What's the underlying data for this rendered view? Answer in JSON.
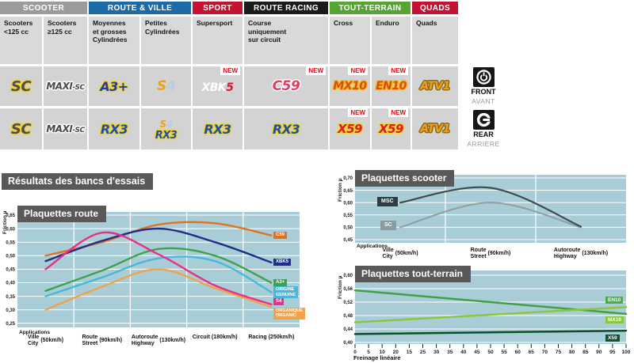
{
  "section_title": "Résultats des bancs d'essais",
  "side_labels": {
    "front": {
      "en": "FRONT",
      "fr": "AVANT"
    },
    "rear": {
      "en": "REAR",
      "fr": "ARRIÈRE"
    }
  },
  "table": {
    "new_label": "NEW",
    "groups": [
      {
        "label": "SCOOTER",
        "color": "#9b9b9b",
        "span": 2
      },
      {
        "label": "ROUTE & VILLE",
        "color": "#1b6ba8",
        "span": 2
      },
      {
        "label": "SPORT",
        "color": "#c51230",
        "span": 1
      },
      {
        "label": "ROUTE RACING",
        "color": "#1b1b1b",
        "span": 1
      },
      {
        "label": "TOUT-TERRAIN",
        "color": "#55a630",
        "span": 2
      },
      {
        "label": "QUADS",
        "color": "#c51230",
        "span": 1
      }
    ],
    "subheaders": [
      "Scooters\n<125 cc",
      "Scooters\n≥125 cc",
      "Moyennes\net grosses\nCylindrées",
      "Petites\nCylindrées",
      "Supersport",
      "Course\nuniquement\nsur circuit",
      "Cross",
      "Enduro",
      "Quads"
    ],
    "front_row": [
      {
        "id": "sc",
        "text": "SC",
        "new": false
      },
      {
        "id": "maxisc",
        "text": "MAXI-SC",
        "new": false
      },
      {
        "id": "a3",
        "text": "A3+",
        "new": false
      },
      {
        "id": "s4",
        "text": "S4",
        "new": false
      },
      {
        "id": "xbk5",
        "text": "XBK5",
        "new": true
      },
      {
        "id": "c59",
        "text": "C59",
        "new": true
      },
      {
        "id": "mx10",
        "text": "MX10",
        "new": true
      },
      {
        "id": "en10",
        "text": "EN10",
        "new": true
      },
      {
        "id": "atv1",
        "text": "ATV1",
        "new": false
      }
    ],
    "rear_row": [
      {
        "id": "sc",
        "text": "SC",
        "new": false
      },
      {
        "id": "maxisc",
        "text": "MAXI-SC",
        "new": false
      },
      {
        "id": "rx3",
        "text": "RX3",
        "new": false
      },
      {
        "id": "s4rx3",
        "text": "S4 RX3",
        "new": false
      },
      {
        "id": "rx3",
        "text": "RX3",
        "new": false
      },
      {
        "id": "rx3",
        "text": "RX3",
        "new": false
      },
      {
        "id": "x59",
        "text": "X59",
        "new": true
      },
      {
        "id": "x59",
        "text": "X59",
        "new": true
      },
      {
        "id": "atv1",
        "text": "ATV1",
        "new": false
      }
    ]
  },
  "chart_data": [
    {
      "id": "route",
      "type": "line",
      "title": "Plaquettes route",
      "ylabel": "Friction µ",
      "xcaption": "Applications",
      "ymin": 0.25,
      "ymax": 0.65,
      "yticks": [
        "0,65",
        "0,60",
        "0,55",
        "0,50",
        "0,45",
        "0,40",
        "0,35",
        "0,30",
        "0,25"
      ],
      "grid": true,
      "legend_position": "right",
      "categories": [
        {
          "lines": [
            "Ville",
            "City"
          ],
          "speed": "(50km/h)"
        },
        {
          "lines": [
            "Route",
            "Street"
          ],
          "speed": "(90km/h)"
        },
        {
          "lines": [
            "Autoroute",
            "Highway"
          ],
          "speed": "(130km/h)"
        },
        {
          "lines": [
            "Circuit"
          ],
          "speed": "(180km/h)"
        },
        {
          "lines": [
            "Racing"
          ],
          "speed": "(250km/h)"
        }
      ],
      "series": [
        {
          "name": "C59",
          "color": "#e2711d",
          "label": [
            "C59"
          ],
          "label_bg": "#e2711d",
          "z": 4,
          "values": [
            0.5,
            0.55,
            0.615,
            0.62,
            0.575
          ]
        },
        {
          "name": "XBK5",
          "color": "#202f86",
          "label": [
            "XBK5"
          ],
          "label_bg": "#202f86",
          "z": 5,
          "values": [
            0.48,
            0.555,
            0.6,
            0.55,
            0.475
          ]
        },
        {
          "name": "S4",
          "color": "#e8308a",
          "label": [
            "S4"
          ],
          "label_bg": "#e8308a",
          "z": 6,
          "values": [
            0.45,
            0.585,
            0.505,
            0.39,
            0.32
          ]
        },
        {
          "name": "A3+",
          "color": "#3da24b",
          "label": [
            "A3+"
          ],
          "label_bg": "#3da24b",
          "z": 3,
          "values": [
            0.37,
            0.445,
            0.525,
            0.5,
            0.4
          ]
        },
        {
          "name": "ORIGINE GENUINE",
          "color": "#49b8d8",
          "label": [
            "ORIGINE",
            "GENUINE"
          ],
          "label_bg": "#49b8d8",
          "z": 2,
          "values": [
            0.35,
            0.42,
            0.49,
            0.48,
            0.365
          ]
        },
        {
          "name": "ORGANIQUE ORGANIC",
          "color": "#f0a348",
          "label": [
            "ORGANIQUE",
            "ORGANIC"
          ],
          "label_bg": "#f0a348",
          "z": 1,
          "values": [
            0.3,
            0.385,
            0.45,
            0.38,
            0.31
          ]
        }
      ]
    },
    {
      "id": "scooter",
      "type": "line",
      "title": "Plaquettes scooter",
      "ylabel": "Friction µ",
      "xcaption": "Applications",
      "ymin": 0.45,
      "ymax": 0.7,
      "yticks": [
        "0,70",
        "0,65",
        "0,60",
        "0,55",
        "0,50",
        "0,45"
      ],
      "grid": true,
      "legend_position": "left",
      "categories": [
        {
          "lines": [
            "Ville",
            "City"
          ],
          "speed": "(50km/h)"
        },
        {
          "lines": [
            "Route",
            "Street"
          ],
          "speed": "(90km/h)"
        },
        {
          "lines": [
            "Autoroute",
            "Highway"
          ],
          "speed": "(130km/h)"
        }
      ],
      "series": [
        {
          "name": "SC",
          "color": "#8fa2a6",
          "label": [
            "SC"
          ],
          "label_bg": "#8a9ca0",
          "z": 1,
          "values": [
            0.5,
            0.6,
            0.5
          ]
        },
        {
          "name": "MSC",
          "color": "#3d4c50",
          "label": [
            "MSC"
          ],
          "label_bg": "#2f3c40",
          "z": 2,
          "values": [
            0.6,
            0.66,
            0.503
          ]
        }
      ]
    },
    {
      "id": "tt",
      "type": "line",
      "title": "Plaquettes tout-terrain",
      "ylabel": "Friction µ",
      "xlabel": "Freinage linéaire",
      "ymin": 0.4,
      "ymax": 0.6,
      "yticks": [
        "0,60",
        "0,56",
        "0,52",
        "0,48",
        "0,44",
        "0,40"
      ],
      "grid": true,
      "legend_position": "right",
      "x_range": [
        0,
        100
      ],
      "xtick_labels": [
        "0",
        "5",
        "10",
        "20",
        "15",
        "25",
        "30",
        "35",
        "40",
        "45",
        "50",
        "55",
        "60",
        "65",
        "70",
        "75",
        "80",
        "85",
        "90",
        "95",
        "100"
      ],
      "series": [
        {
          "name": "EN10",
          "color": "#43a047",
          "label": [
            "EN10"
          ],
          "label_bg": "#4aae44",
          "z": 1,
          "x": [
            0,
            100
          ],
          "values": [
            0.555,
            0.485
          ]
        },
        {
          "name": "MX10",
          "color": "#8bc63f",
          "label": [
            "MX10"
          ],
          "label_bg": "#8bc63f",
          "z": 2,
          "x": [
            0,
            100
          ],
          "values": [
            0.46,
            0.505
          ]
        },
        {
          "name": "X59",
          "color": "#0d4f26",
          "label": [
            "X59"
          ],
          "label_bg": "#14532b",
          "z": 3,
          "x": [
            0,
            100
          ],
          "values": [
            0.425,
            0.435
          ]
        }
      ]
    }
  ]
}
